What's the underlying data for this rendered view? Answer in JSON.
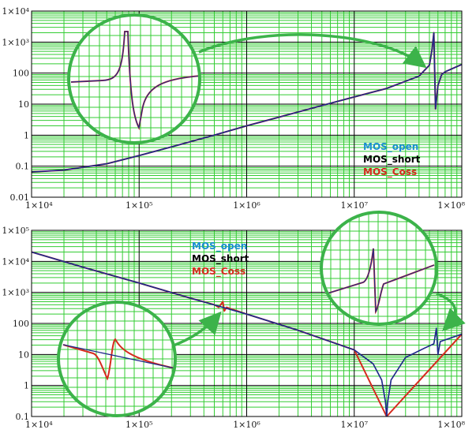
{
  "colors": {
    "background": "#ffffff",
    "minor_grid": "#33cc33",
    "major_grid": "#000000",
    "curve_overlay": "#1f2a8a",
    "mos_open": "#1a8fd0",
    "mos_short": "#000000",
    "mos_coss": "#d62b1e",
    "callout": "#3cb34a"
  },
  "chart_data": [
    {
      "type": "line",
      "xscale": "log",
      "yscale": "log",
      "xlim": [
        10000,
        100000000
      ],
      "ylim": [
        0.01,
        10000
      ],
      "x_tick_labels": [
        "1×10⁴",
        "1×10⁵",
        "1×10⁶",
        "1×10⁷",
        "1×10⁸"
      ],
      "y_tick_labels": [
        "1×10⁴",
        "1×10³",
        "100",
        "10",
        "1",
        "0.1",
        "0.01"
      ],
      "grid": true,
      "legend": {
        "placement": "right",
        "entries": [
          "MOS_open",
          "MOS_short",
          "MOS_Coss"
        ]
      },
      "series": [
        {
          "name": "MOS_open",
          "x": [
            10000,
            20000,
            50000,
            100000,
            200000,
            500000,
            1000000,
            2000000,
            5000000,
            10000000,
            20000000,
            40000000,
            50000000,
            53000000,
            55000000,
            57000000,
            60000000,
            65000000,
            70000000,
            100000000
          ],
          "values": [
            0.065,
            0.075,
            0.12,
            0.22,
            0.42,
            1.0,
            2.0,
            3.8,
            9.0,
            17,
            32,
            80,
            180,
            600,
            2000,
            7,
            40,
            90,
            110,
            190
          ]
        },
        {
          "name": "MOS_short",
          "x": [
            10000,
            20000,
            50000,
            100000,
            200000,
            500000,
            1000000,
            2000000,
            5000000,
            10000000,
            20000000,
            40000000,
            50000000,
            53000000,
            55000000,
            57000000,
            60000000,
            65000000,
            70000000,
            100000000
          ],
          "values": [
            0.065,
            0.075,
            0.12,
            0.22,
            0.42,
            1.0,
            2.0,
            3.8,
            9.0,
            17,
            32,
            80,
            180,
            600,
            2000,
            7,
            40,
            90,
            110,
            190
          ]
        },
        {
          "name": "MOS_Coss",
          "x": [
            10000,
            20000,
            50000,
            100000,
            200000,
            500000,
            1000000,
            2000000,
            5000000,
            10000000,
            20000000,
            40000000,
            50000000,
            53000000,
            55000000,
            57000000,
            60000000,
            65000000,
            70000000,
            100000000
          ],
          "values": [
            0.065,
            0.075,
            0.12,
            0.22,
            0.42,
            1.0,
            2.0,
            3.8,
            9.0,
            17,
            32,
            80,
            180,
            600,
            2000,
            7,
            40,
            90,
            110,
            190
          ]
        }
      ]
    },
    {
      "type": "line",
      "xscale": "log",
      "yscale": "log",
      "xlim": [
        10000,
        100000000
      ],
      "ylim": [
        0.1,
        100000
      ],
      "x_tick_labels": [
        "1×10⁴",
        "1×10⁵",
        "1×10⁶",
        "1×10⁷",
        "1×10⁸"
      ],
      "y_tick_labels": [
        "1×10⁵",
        "1×10⁴",
        "1×10³",
        "100",
        "10",
        "1",
        "0.1"
      ],
      "grid": true,
      "legend": {
        "placement": "top-center",
        "entries": [
          "MOS_open",
          "MOS_short",
          "MOS_Coss"
        ]
      },
      "series": [
        {
          "name": "MOS_open",
          "x": [
            10000,
            30000,
            100000,
            300000,
            1000000,
            3000000,
            10000000,
            15000000,
            18000000,
            19500000,
            20000000,
            20500000,
            22000000,
            30000000,
            45000000,
            55000000,
            58000000,
            60000000,
            63000000,
            100000000
          ],
          "values": [
            20000,
            6500,
            2000,
            650,
            200,
            60,
            14,
            5,
            1.5,
            0.3,
            0.1,
            0.3,
            1.5,
            8,
            16,
            22,
            70,
            10,
            26,
            45
          ]
        },
        {
          "name": "MOS_short",
          "x": [
            10000,
            30000,
            100000,
            300000,
            1000000,
            3000000,
            10000000,
            15000000,
            18000000,
            19500000,
            20000000,
            20500000,
            22000000,
            30000000,
            45000000,
            55000000,
            58000000,
            60000000,
            63000000,
            100000000
          ],
          "values": [
            20000,
            6500,
            2000,
            650,
            200,
            60,
            14,
            5,
            1.5,
            0.3,
            0.1,
            0.3,
            1.5,
            8,
            16,
            22,
            70,
            10,
            26,
            45
          ]
        },
        {
          "name": "MOS_Coss",
          "x": [
            10000,
            30000,
            100000,
            300000,
            500000,
            550000,
            600000,
            620000,
            650000,
            700000,
            1000000,
            3000000,
            10000000,
            20000000,
            100000000
          ],
          "values": [
            20000,
            6500,
            2000,
            650,
            400,
            330,
            500,
            250,
            330,
            300,
            200,
            60,
            14,
            0.1,
            45
          ]
        }
      ]
    }
  ]
}
